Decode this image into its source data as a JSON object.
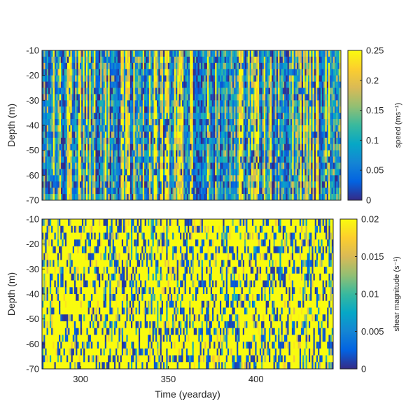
{
  "chart_data": [
    {
      "type": "heatmap",
      "title": "",
      "xlabel": "",
      "ylabel": "Depth (m)",
      "xlim": [
        278,
        444
      ],
      "ylim": [
        -70,
        -10
      ],
      "y_ticks": [
        -10,
        -20,
        -30,
        -40,
        -50,
        -60,
        -70
      ],
      "y_tick_labels": [
        "-10",
        "-20",
        "-30",
        "-40",
        "-50",
        "-60",
        "-70"
      ],
      "x_ticks": [],
      "colorbar": {
        "label": "speed (ms⁻¹)",
        "range": [
          0,
          0.25
        ],
        "ticks": [
          0,
          0.05,
          0.1,
          0.15,
          0.2,
          0.25
        ],
        "tick_labels": [
          "0",
          "0.05",
          "0.1",
          "0.15",
          "0.2",
          "0.25"
        ],
        "colormap": "parula"
      },
      "depth_levels": 24,
      "time_steps": 190,
      "pattern": "high-frequency noisy speed field, mostly blue/cyan with frequent yellow vertical streaks (values 0 to >=0.25 m/s)",
      "seed": 17
    },
    {
      "type": "heatmap",
      "title": "",
      "xlabel": "Time (yearday)",
      "ylabel": "Depth (m)",
      "xlim": [
        278,
        444
      ],
      "ylim": [
        -70,
        -10
      ],
      "y_ticks": [
        -10,
        -20,
        -30,
        -40,
        -50,
        -60,
        -70
      ],
      "y_tick_labels": [
        "-10",
        "-20",
        "-30",
        "-40",
        "-50",
        "-60",
        "-70"
      ],
      "x_ticks": [
        300,
        350,
        400
      ],
      "x_tick_labels": [
        "300",
        "350",
        "400"
      ],
      "colorbar": {
        "label": "shear magnitude (s⁻¹)",
        "range": [
          0,
          0.02
        ],
        "ticks": [
          0,
          0.005,
          0.01,
          0.015,
          0.02
        ],
        "tick_labels": [
          "0",
          "0.005",
          "0.01",
          "0.015",
          "0.02"
        ],
        "colormap": "parula"
      },
      "depth_levels": 22,
      "time_steps": 190,
      "pattern": "noisy shear field dominated by yellow (saturated) with dark blue patches",
      "seed": 91
    }
  ],
  "colors": {
    "parula": [
      "#352A87",
      "#0363E1",
      "#1485D4",
      "#06A7C6",
      "#38B99E",
      "#92BF73",
      "#D9BA56",
      "#FCCE2E",
      "#F9FB0E"
    ],
    "axis": "#262626"
  }
}
